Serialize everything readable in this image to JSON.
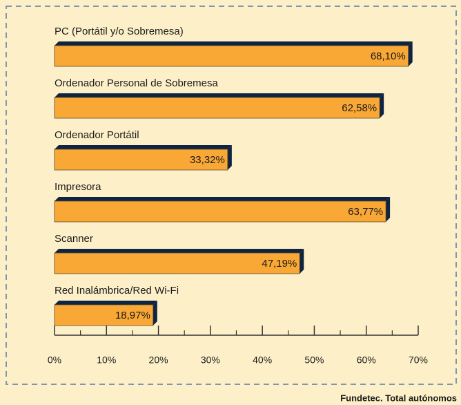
{
  "chart_data": {
    "type": "bar",
    "orientation": "horizontal",
    "categories": [
      "PC (Portátil y/o Sobremesa)",
      "Ordenador Personal de Sobremesa",
      "Ordenador Portátil",
      "Impresora",
      "Scanner",
      "Red Inalámbrica/Red Wi-Fi"
    ],
    "values": [
      68.1,
      62.58,
      33.32,
      63.77,
      47.19,
      18.97
    ],
    "value_labels": [
      "68,10%",
      "62,58%",
      "33,32%",
      "63,77%",
      "47,19%",
      "18,97%"
    ],
    "color": "#f9a835",
    "xlim": [
      0,
      70
    ],
    "xticks": [
      {
        "value": 0,
        "label": "0%"
      },
      {
        "value": 10,
        "label": "10%"
      },
      {
        "value": 20,
        "label": "20%"
      },
      {
        "value": 30,
        "label": "30%"
      },
      {
        "value": 40,
        "label": "40%"
      },
      {
        "value": 50,
        "label": "50%"
      },
      {
        "value": 60,
        "label": "60%"
      },
      {
        "value": 70,
        "label": "70%"
      }
    ],
    "source": "Fundetec. Total autónomos"
  }
}
